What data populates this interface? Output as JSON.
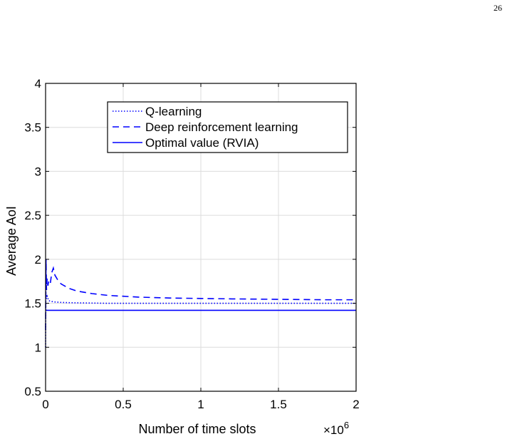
{
  "page": {
    "number": "26"
  },
  "chart_data": {
    "type": "line",
    "xlabel": "Number of time slots",
    "ylabel": "Average AoI",
    "x_multiplier": "×10",
    "x_multiplier_exp": "6",
    "xlim": [
      0,
      2
    ],
    "ylim": [
      0.5,
      4
    ],
    "xticks": [
      0,
      0.5,
      1,
      1.5,
      2
    ],
    "xtick_labels": [
      "0",
      "0.5",
      "1",
      "1.5",
      "2"
    ],
    "yticks": [
      0.5,
      1,
      1.5,
      2,
      2.5,
      3,
      3.5,
      4
    ],
    "ytick_labels": [
      "0.5",
      "1",
      "1.5",
      "2",
      "2.5",
      "3",
      "3.5",
      "4"
    ],
    "grid": true,
    "legend_position": "top-right",
    "series": [
      {
        "name": "Q-learning",
        "style": "dotted",
        "color": "#0000ff",
        "x": [
          0,
          0.002,
          0.005,
          0.01,
          0.02,
          0.04,
          0.06,
          0.1,
          0.2,
          0.4,
          0.7,
          1.0,
          1.5,
          2.0
        ],
        "y": [
          1.0,
          1.62,
          1.55,
          1.58,
          1.53,
          1.52,
          1.515,
          1.51,
          1.505,
          1.5,
          1.5,
          1.5,
          1.5,
          1.5
        ]
      },
      {
        "name": "Deep reinforcement learning",
        "style": "dashed",
        "color": "#0000ff",
        "x": [
          0,
          0.003,
          0.006,
          0.01,
          0.015,
          0.02,
          0.03,
          0.04,
          0.05,
          0.06,
          0.08,
          0.1,
          0.15,
          0.2,
          0.3,
          0.4,
          0.6,
          0.8,
          1.0,
          1.2,
          1.5,
          1.8,
          2.0
        ],
        "y": [
          1.2,
          2.0,
          1.65,
          1.78,
          1.7,
          1.75,
          1.72,
          1.85,
          1.9,
          1.82,
          1.76,
          1.72,
          1.67,
          1.64,
          1.61,
          1.59,
          1.57,
          1.56,
          1.555,
          1.55,
          1.545,
          1.54,
          1.54
        ]
      },
      {
        "name": "Optimal value (RVIA)",
        "style": "solid",
        "color": "#0000ff",
        "x": [
          0,
          2
        ],
        "y": [
          1.42,
          1.42
        ]
      }
    ]
  }
}
